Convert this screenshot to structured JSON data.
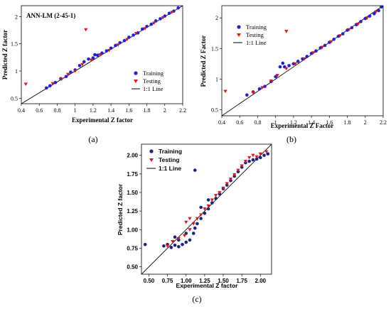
{
  "colors": {
    "training": "#1f1fe0",
    "testing": "#e01515",
    "training_c": "#1a237e",
    "line": "#000000"
  },
  "chart_data": [
    {
      "id": "a",
      "type": "scatter",
      "panel_label": "(a)",
      "title": "ANN-LM (2-45-1)",
      "xlabel": "Experimental Z factor",
      "ylabel": "Predicted Z factor",
      "xlim": [
        0.4,
        2.2
      ],
      "ylim": [
        0.4,
        2.2
      ],
      "xticks": [
        "0.4",
        "0.6",
        "0.8",
        "1",
        "1.2",
        "1.4",
        "1.6",
        "1.8",
        "2",
        "2.2"
      ],
      "yticks": [
        "0.5",
        "1",
        "1.5",
        "2"
      ],
      "ytick_values": [
        0.5,
        1,
        1.5,
        2
      ],
      "legend": [
        "Training",
        "Testing",
        "1:1 Line"
      ],
      "legend_position": "lower-right",
      "series": [
        {
          "name": "Training",
          "marker": "circle",
          "points": [
            [
              0.68,
              0.69
            ],
            [
              0.72,
              0.73
            ],
            [
              0.78,
              0.79
            ],
            [
              0.84,
              0.86
            ],
            [
              0.9,
              0.9
            ],
            [
              0.95,
              0.98
            ],
            [
              1.0,
              1.02
            ],
            [
              1.05,
              1.1
            ],
            [
              1.1,
              1.17
            ],
            [
              1.15,
              1.22
            ],
            [
              1.2,
              1.24
            ],
            [
              1.22,
              1.3
            ],
            [
              1.25,
              1.29
            ],
            [
              1.3,
              1.33
            ],
            [
              1.35,
              1.37
            ],
            [
              1.4,
              1.42
            ],
            [
              1.45,
              1.47
            ],
            [
              1.5,
              1.52
            ],
            [
              1.55,
              1.56
            ],
            [
              1.6,
              1.62
            ],
            [
              1.65,
              1.66
            ],
            [
              1.7,
              1.7
            ],
            [
              1.75,
              1.77
            ],
            [
              1.8,
              1.82
            ],
            [
              1.85,
              1.86
            ],
            [
              1.9,
              1.92
            ],
            [
              1.95,
              1.96
            ],
            [
              2.0,
              2.01
            ],
            [
              2.05,
              2.06
            ],
            [
              2.1,
              2.1
            ],
            [
              2.15,
              2.16
            ]
          ]
        },
        {
          "name": "Testing",
          "marker": "triangle-down",
          "points": [
            [
              0.45,
              0.76
            ],
            [
              1.12,
              1.76
            ],
            [
              0.75,
              0.77
            ],
            [
              0.85,
              0.85
            ],
            [
              0.92,
              0.94
            ],
            [
              1.0,
              1.0
            ],
            [
              1.08,
              1.12
            ],
            [
              1.18,
              1.2
            ],
            [
              1.28,
              1.3
            ],
            [
              1.38,
              1.38
            ],
            [
              1.48,
              1.48
            ],
            [
              1.58,
              1.58
            ],
            [
              1.68,
              1.69
            ],
            [
              1.78,
              1.78
            ],
            [
              1.88,
              1.88
            ],
            [
              1.98,
              1.98
            ],
            [
              2.08,
              2.08
            ]
          ]
        },
        {
          "name": "1:1 Line",
          "marker": "line",
          "points": [
            [
              0.4,
              0.4
            ],
            [
              2.2,
              2.2
            ]
          ]
        }
      ]
    },
    {
      "id": "b",
      "type": "scatter",
      "panel_label": "(b)",
      "title": "",
      "xlabel": "Experimental Z Factor",
      "ylabel": "Predicted Z Factor",
      "xlim": [
        0.4,
        2.2
      ],
      "ylim": [
        0.4,
        2.2
      ],
      "xticks": [
        "0.4",
        "0.6",
        "0.8",
        "1",
        "1.2",
        "1.4",
        "1.6",
        "1.8",
        "2",
        "2.2"
      ],
      "yticks": [
        "0.5",
        "1",
        "1.5",
        "2"
      ],
      "ytick_values": [
        0.5,
        1,
        1.5,
        2
      ],
      "legend": [
        "Training",
        "Testing",
        "1:1 Line"
      ],
      "legend_position": "top-left",
      "series": [
        {
          "name": "Training",
          "marker": "circle",
          "points": [
            [
              0.68,
              0.74
            ],
            [
              0.75,
              0.79
            ],
            [
              0.82,
              0.84
            ],
            [
              0.88,
              0.88
            ],
            [
              0.95,
              0.96
            ],
            [
              1.0,
              1.04
            ],
            [
              1.05,
              1.2
            ],
            [
              1.08,
              1.26
            ],
            [
              1.1,
              1.2
            ],
            [
              1.15,
              1.22
            ],
            [
              1.2,
              1.25
            ],
            [
              1.25,
              1.29
            ],
            [
              1.3,
              1.33
            ],
            [
              1.35,
              1.37
            ],
            [
              1.4,
              1.42
            ],
            [
              1.45,
              1.46
            ],
            [
              1.5,
              1.51
            ],
            [
              1.55,
              1.55
            ],
            [
              1.6,
              1.6
            ],
            [
              1.65,
              1.65
            ],
            [
              1.7,
              1.7
            ],
            [
              1.75,
              1.74
            ],
            [
              1.8,
              1.8
            ],
            [
              1.85,
              1.84
            ],
            [
              1.9,
              1.89
            ],
            [
              1.95,
              1.94
            ],
            [
              2.0,
              1.99
            ],
            [
              2.05,
              2.03
            ],
            [
              2.1,
              2.07
            ],
            [
              2.15,
              2.12
            ],
            [
              2.18,
              2.18
            ]
          ]
        },
        {
          "name": "Testing",
          "marker": "triangle-down",
          "points": [
            [
              0.44,
              0.8
            ],
            [
              1.12,
              1.78
            ],
            [
              0.75,
              0.78
            ],
            [
              0.85,
              0.86
            ],
            [
              0.95,
              0.97
            ],
            [
              1.02,
              1.06
            ],
            [
              1.12,
              1.17
            ],
            [
              1.22,
              1.25
            ],
            [
              1.32,
              1.33
            ],
            [
              1.42,
              1.43
            ],
            [
              1.52,
              1.52
            ],
            [
              1.62,
              1.61
            ],
            [
              1.72,
              1.71
            ],
            [
              1.82,
              1.81
            ],
            [
              1.92,
              1.9
            ],
            [
              2.02,
              2.0
            ],
            [
              2.12,
              2.1
            ]
          ]
        },
        {
          "name": "1:1 Line",
          "marker": "line",
          "points": [
            [
              0.4,
              0.4
            ],
            [
              2.2,
              2.2
            ]
          ]
        }
      ]
    },
    {
      "id": "c",
      "type": "scatter",
      "panel_label": "(c)",
      "title": "",
      "xlabel": "Experimental Z factor",
      "ylabel": "Predicted Z factor",
      "xlim": [
        0.4,
        2.15
      ],
      "ylim": [
        0.4,
        2.15
      ],
      "xticks": [
        "0.50",
        "0.75",
        "1.00",
        "1.25",
        "1.50",
        "1.75",
        "2.00"
      ],
      "xtick_values": [
        0.5,
        0.75,
        1.0,
        1.25,
        1.5,
        1.75,
        2.0
      ],
      "yticks": [
        "0.50",
        "0.75",
        "1.00",
        "1.25",
        "1.50",
        "1.75",
        "2.00"
      ],
      "ytick_values": [
        0.5,
        0.75,
        1.0,
        1.25,
        1.5,
        1.75,
        2.0
      ],
      "legend": [
        "Training",
        "Testing",
        "1:1 Line"
      ],
      "legend_position": "top-left",
      "series": [
        {
          "name": "Training",
          "marker": "circle",
          "points": [
            [
              0.45,
              0.8
            ],
            [
              1.12,
              1.8
            ],
            [
              0.7,
              0.78
            ],
            [
              0.75,
              0.8
            ],
            [
              0.8,
              0.76
            ],
            [
              0.85,
              0.79
            ],
            [
              0.9,
              0.77
            ],
            [
              0.95,
              0.8
            ],
            [
              1.0,
              0.83
            ],
            [
              1.05,
              0.86
            ],
            [
              1.1,
              0.95
            ],
            [
              1.12,
              1.02
            ],
            [
              1.15,
              1.08
            ],
            [
              1.2,
              1.15
            ],
            [
              1.25,
              1.22
            ],
            [
              1.3,
              1.28
            ],
            [
              1.35,
              1.36
            ],
            [
              1.4,
              1.42
            ],
            [
              1.45,
              1.48
            ],
            [
              1.5,
              1.55
            ],
            [
              1.55,
              1.6
            ],
            [
              1.6,
              1.66
            ],
            [
              1.65,
              1.72
            ],
            [
              1.7,
              1.78
            ],
            [
              1.75,
              1.84
            ],
            [
              1.8,
              1.9
            ],
            [
              1.85,
              1.92
            ],
            [
              1.9,
              1.94
            ],
            [
              1.95,
              1.95
            ],
            [
              2.0,
              1.97
            ],
            [
              2.05,
              2.0
            ],
            [
              2.1,
              2.02
            ],
            [
              1.0,
              0.95
            ],
            [
              0.9,
              0.86
            ],
            [
              0.85,
              0.9
            ],
            [
              1.2,
              1.3
            ],
            [
              1.3,
              1.4
            ]
          ]
        },
        {
          "name": "Testing",
          "marker": "triangle-down",
          "points": [
            [
              0.75,
              0.78
            ],
            [
              0.82,
              0.84
            ],
            [
              0.9,
              0.88
            ],
            [
              0.98,
              0.92
            ],
            [
              1.05,
              1.0
            ],
            [
              1.1,
              1.08
            ],
            [
              1.15,
              1.15
            ],
            [
              1.2,
              1.2
            ],
            [
              1.25,
              1.28
            ],
            [
              1.3,
              1.32
            ],
            [
              1.35,
              1.4
            ],
            [
              1.4,
              1.46
            ],
            [
              1.45,
              1.5
            ],
            [
              1.5,
              1.56
            ],
            [
              1.55,
              1.62
            ],
            [
              1.6,
              1.68
            ],
            [
              1.65,
              1.74
            ],
            [
              1.7,
              1.8
            ],
            [
              1.75,
              1.86
            ],
            [
              1.8,
              1.92
            ],
            [
              1.85,
              1.97
            ],
            [
              1.9,
              2.0
            ],
            [
              1.95,
              1.98
            ],
            [
              2.0,
              2.02
            ],
            [
              2.08,
              2.05
            ],
            [
              1.05,
              1.15
            ],
            [
              1.0,
              1.1
            ]
          ]
        },
        {
          "name": "1:1 Line",
          "marker": "line",
          "points": [
            [
              0.4,
              0.4
            ],
            [
              2.15,
              2.15
            ]
          ]
        }
      ]
    }
  ]
}
